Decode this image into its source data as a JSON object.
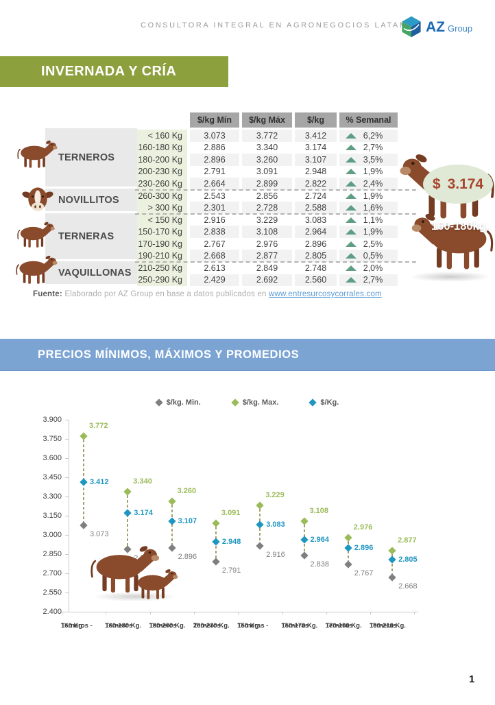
{
  "page": {
    "header_text": "CONSULTORA INTEGRAL EN AGRONEGOCIOS LATAM",
    "logo": {
      "az": "AZ",
      "group": "Group"
    },
    "page_number": "1"
  },
  "section1": {
    "title": "INVERNADA Y CRÍA",
    "table": {
      "headers": [
        "$/kg Mín",
        "$/kg Máx",
        "$/kg",
        "% Semanal"
      ],
      "categories": [
        {
          "name": "TERNEROS"
        },
        {
          "name": "NOVILLITOS"
        },
        {
          "name": "TERNERAS"
        },
        {
          "name": "VAQUILLONAS"
        }
      ],
      "rows": [
        {
          "weight": "< 160 Kg",
          "min": "3.073",
          "max": "3.772",
          "kg": "3.412",
          "weekly": "6,2%",
          "trend": "up",
          "divider": false
        },
        {
          "weight": "160-180 Kg",
          "min": "2.886",
          "max": "3.340",
          "kg": "3.174",
          "weekly": "2,7%",
          "trend": "up",
          "divider": false
        },
        {
          "weight": "180-200 Kg",
          "min": "2.896",
          "max": "3.260",
          "kg": "3.107",
          "weekly": "3,5%",
          "trend": "up",
          "divider": false
        },
        {
          "weight": "200-230 Kg",
          "min": "2.791",
          "max": "3.091",
          "kg": "2.948",
          "weekly": "1,9%",
          "trend": "up",
          "divider": false
        },
        {
          "weight": "230-260 Kg",
          "min": "2.664",
          "max": "2.899",
          "kg": "2.822",
          "weekly": "2,4%",
          "trend": "up",
          "divider": true
        },
        {
          "weight": "260-300 Kg",
          "min": "2.543",
          "max": "2.856",
          "kg": "2.724",
          "weekly": "1,9%",
          "trend": "up",
          "divider": false
        },
        {
          "weight": "> 300 Kg",
          "min": "2.301",
          "max": "2.728",
          "kg": "2.588",
          "weekly": "1,6%",
          "trend": "up",
          "divider": true
        },
        {
          "weight": "< 150 Kg",
          "min": "2.916",
          "max": "3.229",
          "kg": "3.083",
          "weekly": "1,1%",
          "trend": "up",
          "divider": false
        },
        {
          "weight": "150-170 Kg",
          "min": "2.838",
          "max": "3.108",
          "kg": "2.964",
          "weekly": "1,9%",
          "trend": "up",
          "divider": false
        },
        {
          "weight": "170-190 Kg",
          "min": "2.767",
          "max": "2.976",
          "kg": "2.896",
          "weekly": "2,5%",
          "trend": "up",
          "divider": false
        },
        {
          "weight": "190-210 Kg",
          "min": "2.668",
          "max": "2.877",
          "kg": "2.805",
          "weekly": "0,5%",
          "trend": "up",
          "divider": true
        },
        {
          "weight": "210-250 Kg",
          "min": "2.613",
          "max": "2.849",
          "kg": "2.748",
          "weekly": "2,0%",
          "trend": "up",
          "divider": false
        },
        {
          "weight": "250-290 Kg",
          "min": "2.429",
          "max": "2.692",
          "kg": "2.560",
          "weekly": "2,7%",
          "trend": "up",
          "divider": false
        }
      ]
    },
    "highlight": {
      "currency": "$",
      "value": "3.174",
      "weight_label": "160-180kg."
    },
    "source": {
      "prefix": "Fuente:",
      "text": " Elaborado por AZ Group en base a datos publicados en ",
      "link": "www.entresurcosycorrales.com"
    }
  },
  "section2": {
    "title": "PRECIOS MÍNIMOS, MÁXIMOS Y PROMEDIOS"
  },
  "chart_data": {
    "type": "scatter",
    "title": "PRECIOS MÍNIMOS, MÁXIMOS Y PROMEDIOS",
    "ylim": [
      2400,
      3900
    ],
    "ytick_labels": [
      "3.900",
      "3.750",
      "3.600",
      "3.450",
      "3.300",
      "3.150",
      "3.000",
      "2.850",
      "2.700",
      "2.550",
      "2.400"
    ],
    "grid": false,
    "legend_position": "top",
    "categories": [
      [
        "Terneros -",
        "160 Kg."
      ],
      [
        "Terneros",
        "160-180 Kg."
      ],
      [
        "Terneros",
        "180-200 Kg."
      ],
      [
        "Terneros",
        "200-230 Kg."
      ],
      [
        "Terneras -",
        "150 Kg."
      ],
      [
        "Terneras",
        "150-170 Kg."
      ],
      [
        "Terneras",
        "170-190 Kg."
      ],
      [
        "Terneras",
        "190-210 Kg."
      ]
    ],
    "series": [
      {
        "name": "$/kg. Min.",
        "color": "#7f7f7f",
        "values": [
          3073,
          2886,
          2896,
          2791,
          2916,
          2838,
          2767,
          2668
        ],
        "labels": [
          "3.073",
          "2.886",
          "2.896",
          "2.791",
          "2.916",
          "2.838",
          "2.767",
          "2.668"
        ]
      },
      {
        "name": "$/kg. Max.",
        "color": "#9bbb59",
        "values": [
          3772,
          3340,
          3260,
          3091,
          3229,
          3108,
          2976,
          2877
        ],
        "labels": [
          "3.772",
          "3.340",
          "3.260",
          "3.091",
          "3.229",
          "3.108",
          "2.976",
          "2.877"
        ]
      },
      {
        "name": "$/Kg.",
        "color": "#1e96c0",
        "values": [
          3412,
          3174,
          3107,
          2948,
          3083,
          2964,
          2896,
          2805
        ],
        "labels": [
          "3.412",
          "3.174",
          "3.107",
          "2.948",
          "3.083",
          "2.964",
          "2.896",
          "2.805"
        ]
      }
    ],
    "connector_style": "dashed",
    "connector_color": "#a5a06b"
  },
  "colors": {
    "banner_green": "#8da03e",
    "banner_blue": "#7ca4d3",
    "table_header": "#a6a6a6",
    "weight_cell": "#ebf1de",
    "trend_up": "#5f9e82",
    "price_text": "#a8432e",
    "price_oval": "#dfe9d5"
  }
}
